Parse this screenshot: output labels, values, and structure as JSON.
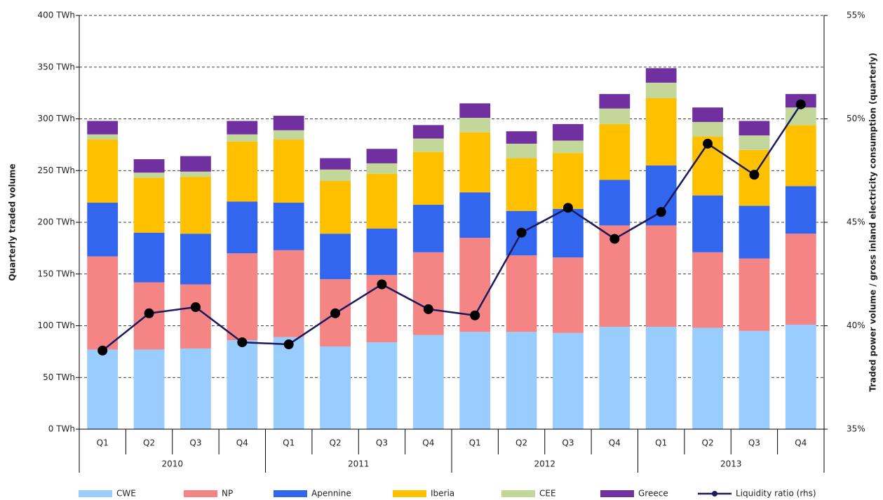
{
  "chart_data": {
    "type": "bar",
    "y_title": "Quarterly traded volume",
    "y2_title": "Traded power volume / gross inland electricity consumption (quarterly)",
    "categories": [
      "Q1",
      "Q2",
      "Q3",
      "Q4",
      "Q1",
      "Q2",
      "Q3",
      "Q4",
      "Q1",
      "Q2",
      "Q3",
      "Q4",
      "Q1",
      "Q2",
      "Q3",
      "Q4"
    ],
    "x_groups": [
      "2010",
      "2011",
      "2012",
      "2013"
    ],
    "stacked": true,
    "grid": true,
    "series": [
      {
        "name": "CWE",
        "color": "#99ccff",
        "values": [
          77,
          77,
          78,
          86,
          89,
          80,
          84,
          91,
          94,
          94,
          93,
          99,
          99,
          98,
          95,
          101
        ]
      },
      {
        "name": "NP",
        "color": "#f58484",
        "values": [
          90,
          65,
          62,
          84,
          84,
          65,
          65,
          80,
          91,
          74,
          73,
          98,
          98,
          73,
          70,
          88
        ]
      },
      {
        "name": "Apennine",
        "color": "#3366ee",
        "values": [
          52,
          48,
          49,
          50,
          46,
          44,
          45,
          46,
          44,
          43,
          47,
          44,
          58,
          55,
          51,
          46
        ]
      },
      {
        "name": "Iberia",
        "color": "#ffc000",
        "values": [
          61,
          53,
          55,
          58,
          61,
          51,
          53,
          51,
          58,
          51,
          54,
          54,
          65,
          57,
          54,
          59
        ]
      },
      {
        "name": "CEE",
        "color": "#c4d79b",
        "values": [
          5,
          5,
          5,
          7,
          9,
          11,
          10,
          13,
          14,
          14,
          12,
          15,
          15,
          14,
          14,
          17
        ]
      },
      {
        "name": "Greece",
        "color": "#7030a0",
        "values": [
          13,
          13,
          15,
          13,
          14,
          11,
          14,
          13,
          14,
          12,
          16,
          14,
          14,
          14,
          14,
          13
        ]
      },
      {
        "name": "Liquidity ratio (rhs)",
        "type": "line",
        "axis": "y2",
        "color": "#1a1a5e",
        "values": [
          38.8,
          40.6,
          40.9,
          39.2,
          39.1,
          40.6,
          42.0,
          40.8,
          40.5,
          44.5,
          45.7,
          44.2,
          45.5,
          48.8,
          47.3,
          50.7
        ]
      }
    ],
    "ylim": [
      0,
      400
    ],
    "yticks": [
      {
        "value": 0,
        "label": "0 TWh"
      },
      {
        "value": 50,
        "label": "50 TWh"
      },
      {
        "value": 100,
        "label": "100 TWh"
      },
      {
        "value": 150,
        "label": "150 TWh"
      },
      {
        "value": 200,
        "label": "200 TWh"
      },
      {
        "value": 250,
        "label": "250 TWh"
      },
      {
        "value": 300,
        "label": "300 TWh"
      },
      {
        "value": 350,
        "label": "350 TWh"
      },
      {
        "value": 400,
        "label": "400 TWh"
      }
    ],
    "y2lim": [
      35,
      55
    ],
    "y2ticks": [
      {
        "value": 35,
        "label": "35%"
      },
      {
        "value": 40,
        "label": "40%"
      },
      {
        "value": 45,
        "label": "45%"
      },
      {
        "value": 50,
        "label": "50%"
      },
      {
        "value": 55,
        "label": "55%"
      }
    ]
  }
}
